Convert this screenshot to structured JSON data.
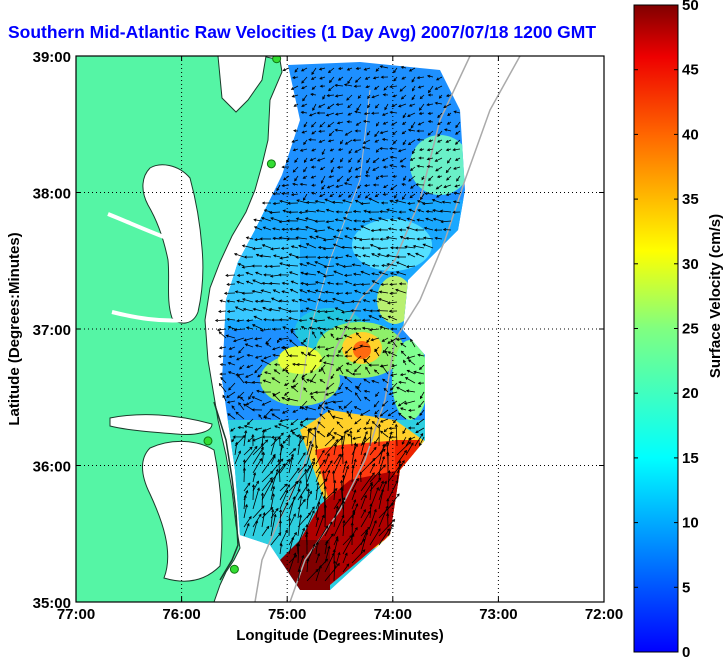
{
  "chart_data": {
    "type": "heatmap",
    "title": "Southern Mid-Atlantic Raw Velocities (1 Day Avg) 2007/07/18 1200 GMT",
    "xlabel": "Longitude (Degrees:Minutes)",
    "ylabel": "Latitude (Degrees:Minutes)",
    "x_ticks": [
      "77:00",
      "76:00",
      "75:00",
      "74:00",
      "73:00",
      "72:00"
    ],
    "x_tick_values": [
      -77,
      -76,
      -75,
      -74,
      -73,
      -72
    ],
    "y_ticks": [
      "39:00",
      "38:00",
      "37:00",
      "36:00",
      "35:00"
    ],
    "y_tick_values": [
      39,
      38,
      37,
      36,
      35
    ],
    "xlim": [
      -77,
      -72
    ],
    "ylim": [
      35,
      39
    ],
    "grid": true,
    "colorbar": {
      "label": "Surface Velocity (cm/s)",
      "range": [
        0,
        50
      ],
      "ticks": [
        "50",
        "45",
        "40",
        "35",
        "30",
        "25",
        "20",
        "15",
        "10",
        "5",
        "0"
      ],
      "tick_values": [
        50,
        45,
        40,
        35,
        30,
        25,
        20,
        15,
        10,
        5,
        0
      ],
      "colormap": "jet"
    },
    "stations": [
      {
        "lon": -75.1,
        "lat": 38.98
      },
      {
        "lon": -75.15,
        "lat": 38.21
      },
      {
        "lon": -75.75,
        "lat": 36.18
      },
      {
        "lon": -75.5,
        "lat": 35.24
      }
    ],
    "colors": {
      "land": "#55f5a5",
      "water": "#ffffff",
      "title": "#0000ff",
      "shelf_contour": "#aaaaaa",
      "station": "#33dd33"
    }
  }
}
